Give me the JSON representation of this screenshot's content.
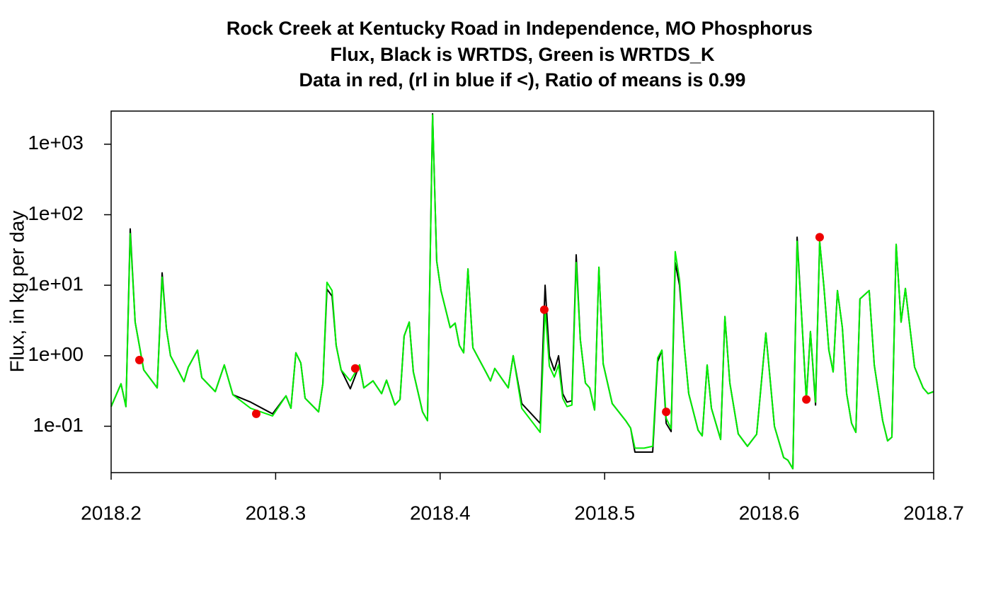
{
  "chart_data": {
    "type": "line",
    "title": [
      "Rock Creek at Kentucky Road in Independence, MO Phosphorus",
      "Flux, Black is WRTDS, Green is WRTDS_K",
      "Data in red, (rl in blue if <), Ratio of means is 0.99"
    ],
    "y_label": "Flux, in kg per day",
    "log_y": true,
    "xlim": [
      2018.2,
      2018.7
    ],
    "xticks": [
      2018.2,
      2018.3,
      2018.4,
      2018.5,
      2018.6,
      2018.7
    ],
    "ylim": [
      0.022,
      2950
    ],
    "yticks": [
      {
        "value": 0.1,
        "label": "1e-01"
      },
      {
        "value": 1,
        "label": "1e+00"
      },
      {
        "value": 10,
        "label": "1e+01"
      },
      {
        "value": 100,
        "label": "1e+02"
      },
      {
        "value": 1000,
        "label": "1e+03"
      }
    ],
    "x": [
      2018.2,
      2018.206,
      2018.209,
      2018.2116,
      2018.2146,
      2018.2198,
      2018.228,
      2018.231,
      2018.2336,
      2018.2361,
      2018.2443,
      2018.2469,
      2018.2525,
      2018.2551,
      2018.2633,
      2018.2688,
      2018.274,
      2018.2848,
      2018.2981,
      2018.3063,
      2018.3093,
      2018.3123,
      2018.3153,
      2018.3179,
      2018.3261,
      2018.3287,
      2018.3312,
      2018.3343,
      2018.3368,
      2018.3398,
      2018.3454,
      2018.351,
      2018.3536,
      2018.3592,
      2018.3644,
      2018.3674,
      2018.3725,
      2018.3756,
      2018.3781,
      2018.3812,
      2018.3837,
      2018.3893,
      2018.3923,
      2018.3954,
      2018.3979,
      2018.4005,
      2018.4061,
      2018.4091,
      2018.4117,
      2018.4143,
      2018.4169,
      2018.4199,
      2018.4281,
      2018.4306,
      2018.4332,
      2018.4414,
      2018.4444,
      2018.4496,
      2018.4608,
      2018.4638,
      2018.4664,
      2018.4694,
      2018.472,
      2018.4745,
      2018.4771,
      2018.4801,
      2018.4827,
      2018.4852,
      2018.4883,
      2018.4909,
      2018.4939,
      2018.4965,
      2018.4991,
      2018.5046,
      2018.5128,
      2018.5158,
      2018.5184,
      2018.524,
      2018.5292,
      2018.5322,
      2018.5348,
      2018.5374,
      2018.5404,
      2018.5429,
      2018.5455,
      2018.5485,
      2018.5511,
      2018.5568,
      2018.5593,
      2018.5623,
      2018.5649,
      2018.5705,
      2018.5731,
      2018.5761,
      2018.5812,
      2018.5868,
      2018.5924,
      2018.598,
      2018.6032,
      2018.6088,
      2018.6114,
      2018.6144,
      2018.617,
      2018.6196,
      2018.6226,
      2018.6251,
      2018.6282,
      2018.6307,
      2018.6333,
      2018.6363,
      2018.6389,
      2018.6415,
      2018.6445,
      2018.6471,
      2018.6501,
      2018.6527,
      2018.6552,
      2018.6608,
      2018.6639,
      2018.669,
      2018.672,
      2018.6746,
      2018.6772,
      2018.6802,
      2018.6828,
      2018.6884,
      2018.6936,
      2018.6966,
      2018.7
    ],
    "series": [
      {
        "color": "#000000",
        "values": [
          0.19,
          0.4,
          0.19,
          63,
          3.0,
          0.63,
          0.35,
          15,
          2.4,
          1.0,
          0.43,
          0.69,
          1.2,
          0.49,
          0.31,
          0.74,
          0.28,
          0.22,
          0.15,
          0.27,
          0.18,
          1.1,
          0.79,
          0.25,
          0.16,
          0.4,
          8.8,
          7.0,
          1.4,
          0.63,
          0.34,
          0.74,
          0.35,
          0.44,
          0.29,
          0.45,
          0.2,
          0.24,
          1.9,
          3.0,
          0.59,
          0.16,
          0.12,
          2700,
          22,
          8.4,
          2.5,
          2.9,
          1.4,
          1.1,
          17,
          1.3,
          0.57,
          0.44,
          0.66,
          0.35,
          1.0,
          0.21,
          0.11,
          10,
          0.99,
          0.62,
          1.0,
          0.29,
          0.22,
          0.23,
          27,
          1.7,
          0.41,
          0.35,
          0.17,
          18,
          0.77,
          0.21,
          0.12,
          0.094,
          0.043,
          0.043,
          0.043,
          0.82,
          1.2,
          0.11,
          0.084,
          21,
          10,
          1.3,
          0.29,
          0.088,
          0.073,
          0.74,
          0.18,
          0.065,
          3.6,
          0.41,
          0.078,
          0.052,
          0.077,
          2.1,
          0.1,
          0.036,
          0.033,
          0.025,
          48,
          4.2,
          0.24,
          2.2,
          0.2,
          42,
          9.4,
          1.2,
          0.59,
          8.4,
          2.5,
          0.29,
          0.11,
          0.082,
          6.4,
          8.4,
          0.74,
          0.12,
          0.062,
          0.07,
          38,
          3.0,
          9.0,
          0.69,
          0.35,
          0.29,
          0.31
        ]
      },
      {
        "color": "#00ee00",
        "values": [
          0.19,
          0.4,
          0.19,
          54,
          3.0,
          0.63,
          0.35,
          13,
          2.4,
          1.0,
          0.43,
          0.69,
          1.2,
          0.49,
          0.31,
          0.74,
          0.28,
          0.18,
          0.14,
          0.27,
          0.18,
          1.1,
          0.79,
          0.25,
          0.16,
          0.4,
          11,
          8.4,
          1.4,
          0.63,
          0.44,
          0.74,
          0.35,
          0.44,
          0.29,
          0.45,
          0.2,
          0.24,
          1.9,
          3.0,
          0.59,
          0.16,
          0.12,
          2600,
          22,
          8.4,
          2.5,
          2.9,
          1.4,
          1.1,
          17,
          1.3,
          0.57,
          0.44,
          0.66,
          0.35,
          1.0,
          0.18,
          0.082,
          4.7,
          0.71,
          0.5,
          0.74,
          0.25,
          0.19,
          0.2,
          21,
          1.7,
          0.41,
          0.35,
          0.17,
          18,
          0.77,
          0.21,
          0.12,
          0.094,
          0.049,
          0.049,
          0.052,
          0.93,
          1.2,
          0.13,
          0.092,
          30,
          12,
          1.3,
          0.29,
          0.088,
          0.073,
          0.74,
          0.18,
          0.065,
          3.6,
          0.41,
          0.078,
          0.052,
          0.077,
          2.1,
          0.1,
          0.036,
          0.033,
          0.025,
          42,
          4.2,
          0.23,
          2.2,
          0.22,
          42,
          9.4,
          1.2,
          0.59,
          8.4,
          2.5,
          0.29,
          0.11,
          0.082,
          6.4,
          8.4,
          0.74,
          0.12,
          0.062,
          0.07,
          38,
          3.0,
          9.0,
          0.69,
          0.35,
          0.29,
          0.31
        ]
      }
    ],
    "points": {
      "color": "#ee0000",
      "x": [
        2018.2172,
        2018.2882,
        2018.3484,
        2018.4633,
        2018.5374,
        2018.6226,
        2018.6307
      ],
      "values": [
        0.87,
        0.15,
        0.66,
        4.5,
        0.16,
        0.24,
        48
      ]
    }
  }
}
